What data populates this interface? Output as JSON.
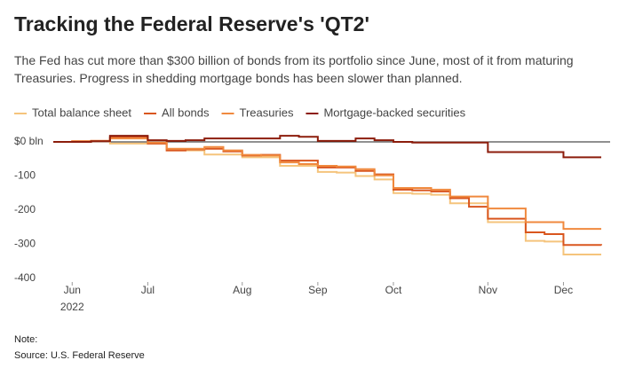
{
  "chart_data": {
    "type": "step-line",
    "title": "Tracking the Federal Reserve's 'QT2'",
    "subtitle": "The Fed has cut more than $300 billion of bonds from its portfolio since June, most of it from maturing Treasuries. Progress in shedding mortgage bonds has been slower than planned.",
    "categories": [
      null,
      "Jun",
      null,
      null,
      null,
      "Jul",
      null,
      null,
      null,
      null,
      "Aug",
      null,
      null,
      null,
      "Sep",
      null,
      null,
      null,
      "Oct",
      null,
      null,
      null,
      null,
      "Nov",
      null,
      null,
      null,
      "Dec",
      null,
      null
    ],
    "x_sublabel": "2022",
    "series": [
      {
        "name": "Total balance sheet",
        "color": "#f5c47c",
        "values": [
          0,
          0,
          2,
          -5,
          -5,
          -5,
          -25,
          -25,
          -37,
          -37,
          -45,
          -45,
          -70,
          -70,
          -88,
          -90,
          -100,
          -110,
          -150,
          -152,
          -155,
          -180,
          -180,
          -235,
          -235,
          -290,
          -292,
          -330,
          -330,
          -330
        ]
      },
      {
        "name": "All bonds",
        "color": "#d9561e",
        "values": [
          0,
          2,
          3,
          14,
          15,
          -5,
          -25,
          -22,
          -20,
          -28,
          -40,
          -38,
          -55,
          -55,
          -75,
          -75,
          -85,
          -95,
          -140,
          -142,
          -145,
          -165,
          -190,
          -225,
          -225,
          -265,
          -270,
          -302,
          -302,
          -303
        ]
      },
      {
        "name": "Treasuries",
        "color": "#f0893e",
        "values": [
          0,
          2,
          3,
          10,
          10,
          -2,
          -20,
          -20,
          -15,
          -25,
          -38,
          -40,
          -60,
          -65,
          -70,
          -72,
          -80,
          -98,
          -135,
          -135,
          -140,
          -160,
          -160,
          -195,
          -195,
          -235,
          -235,
          -255,
          -255,
          -255
        ]
      },
      {
        "name": "Mortgage-backed securities",
        "color": "#8c1d0c",
        "values": [
          0,
          0,
          2,
          18,
          18,
          5,
          3,
          5,
          10,
          10,
          10,
          10,
          18,
          15,
          3,
          3,
          10,
          5,
          0,
          -2,
          -2,
          -2,
          -2,
          -30,
          -30,
          -30,
          -30,
          -45,
          -45,
          -45
        ]
      }
    ],
    "ylim": [
      -400,
      30
    ],
    "yticks": [
      {
        "value": 0,
        "label": "$0 bln"
      },
      -100,
      -200,
      -300,
      -400
    ],
    "note": "Note:",
    "source": "Source: U.S. Federal Reserve"
  }
}
